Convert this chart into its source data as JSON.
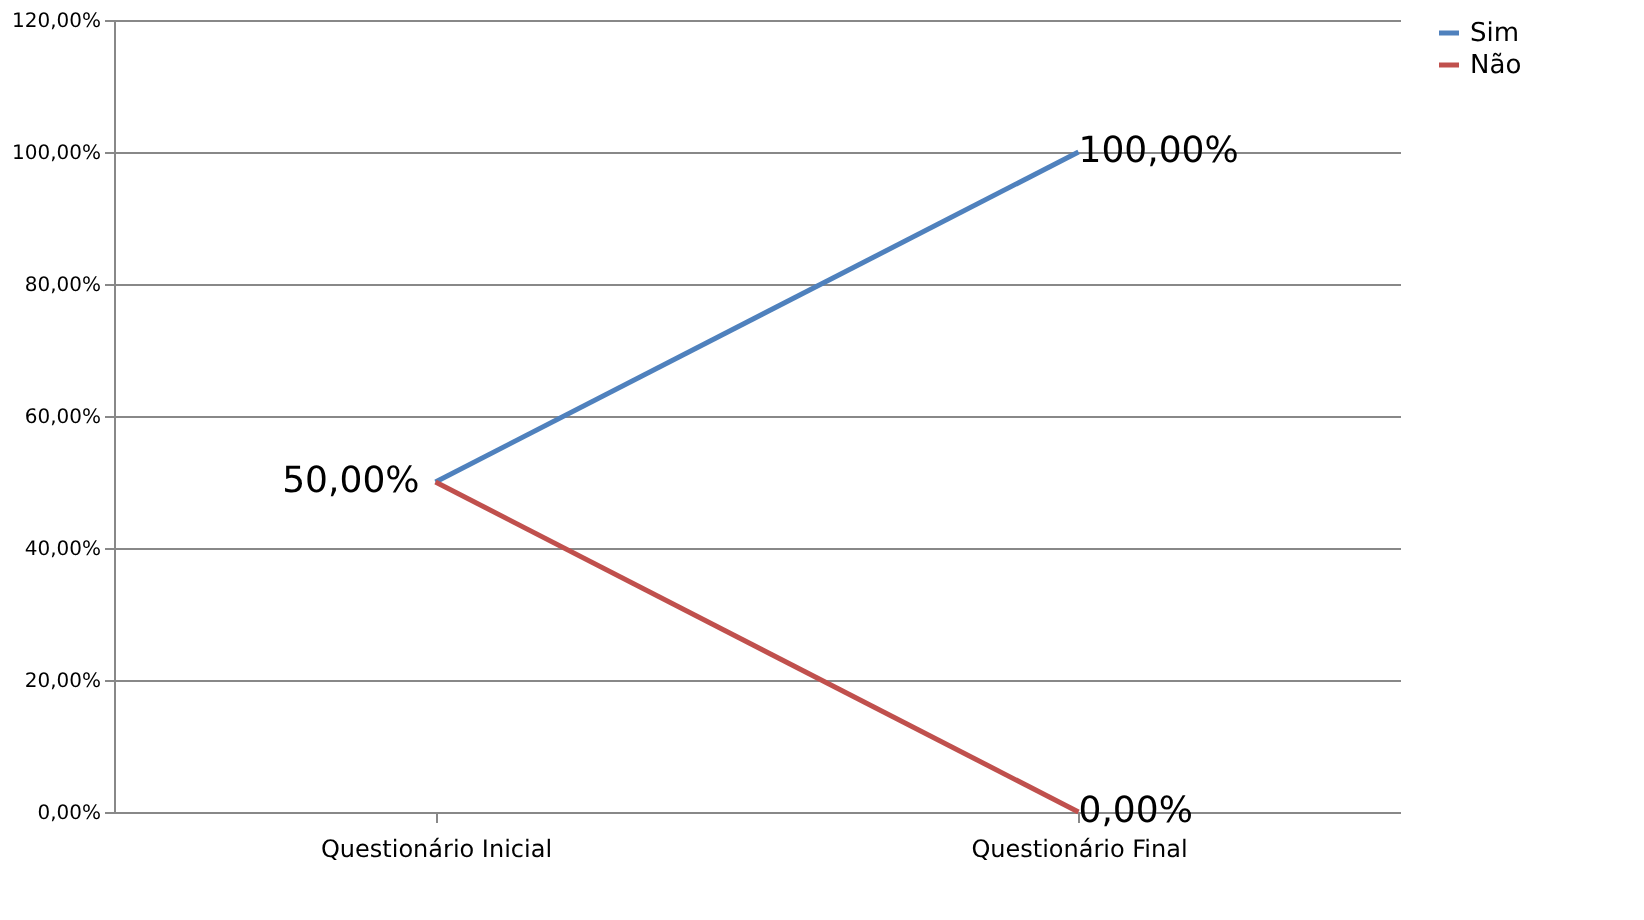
{
  "chart_data": {
    "type": "line",
    "categories": [
      "Questionário Inicial",
      "Questionário Final"
    ],
    "series": [
      {
        "name": "Sim",
        "color": "#4f81bd",
        "values": [
          50,
          100
        ],
        "value_labels": [
          "50,00%",
          "100,00%"
        ]
      },
      {
        "name": "Não",
        "color": "#c0504d",
        "values": [
          50,
          0
        ],
        "value_labels": [
          null,
          "0,00%"
        ]
      }
    ],
    "ylim": [
      0,
      120
    ],
    "yticks": [
      {
        "value": 0,
        "label": "0,00%"
      },
      {
        "value": 20,
        "label": "20,00%"
      },
      {
        "value": 40,
        "label": "40,00%"
      },
      {
        "value": 60,
        "label": "60,00%"
      },
      {
        "value": 80,
        "label": "80,00%"
      },
      {
        "value": 100,
        "label": "100,00%"
      },
      {
        "value": 120,
        "label": "120,00%"
      }
    ],
    "grid": "y",
    "legend": "right",
    "marker": "none",
    "line_style": "solid"
  }
}
